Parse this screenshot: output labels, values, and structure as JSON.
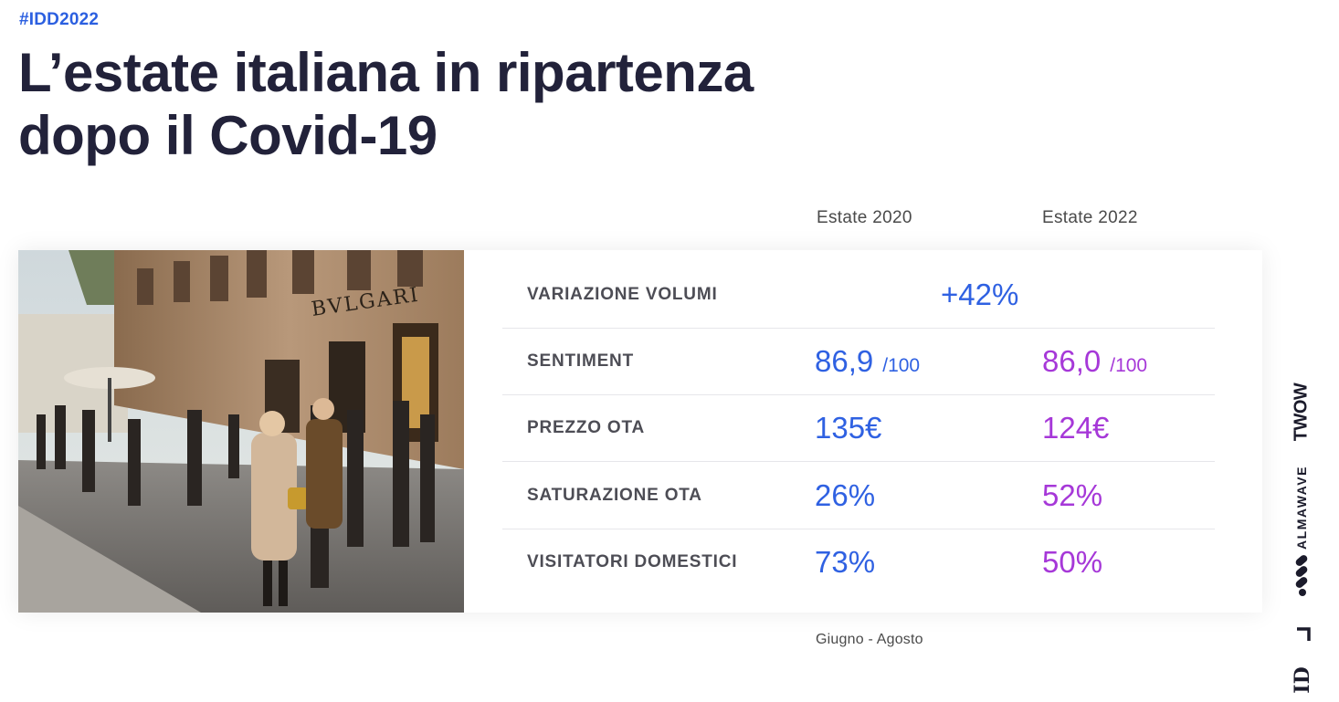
{
  "header": {
    "hashtag": "#IDD2022",
    "title_line1": "L’estate italiana in ripartenza",
    "title_line2": "dopo il Covid-19"
  },
  "columns": {
    "col1": "Estate 2020",
    "col2": "Estate 2022"
  },
  "photo": {
    "storefront_sign": "BVLGARI"
  },
  "rows": [
    {
      "label": "VARIAZIONE VOLUMI",
      "combined": "+42%"
    },
    {
      "label": "SENTIMENT",
      "v2020": "86,9",
      "u2020": "/100",
      "v2022": "86,0",
      "u2022": "/100"
    },
    {
      "label": "PREZZO OTA",
      "v2020": "135€",
      "v2022": "124€"
    },
    {
      "label": "SATURAZIONE OTA",
      "v2020": "26%",
      "v2022": "52%"
    },
    {
      "label": "VISITATORI DOMESTICI",
      "v2020": "73%",
      "v2022": "50%"
    }
  ],
  "footnote": "Giugno - Agosto",
  "logos": {
    "twow": "TWOW",
    "almawave": "ALMAWAVE",
    "idd": "ID"
  },
  "colors": {
    "accent_blue": "#2f61e2",
    "accent_purple": "#a638d8",
    "title": "#22223a"
  }
}
